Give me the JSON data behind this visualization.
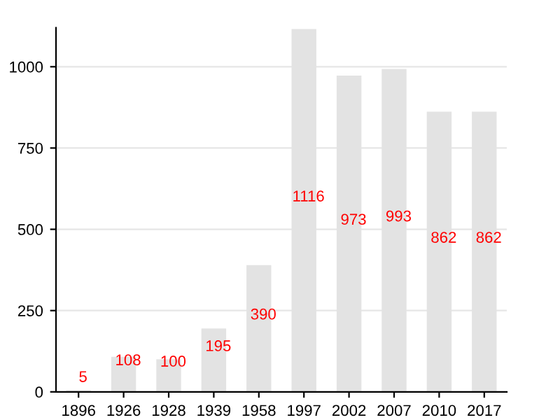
{
  "chart_data": {
    "type": "bar",
    "categories": [
      "1896",
      "1926",
      "1928",
      "1939",
      "1958",
      "1997",
      "2002",
      "2007",
      "2010",
      "2017"
    ],
    "values": [
      5,
      108,
      100,
      195,
      390,
      1116,
      973,
      993,
      862,
      862
    ],
    "color": "#e3e3e3",
    "ylim": [
      0,
      1120
    ],
    "yticks": [
      0,
      250,
      500,
      750,
      1000
    ],
    "grid": "y",
    "data_labels": true
  }
}
